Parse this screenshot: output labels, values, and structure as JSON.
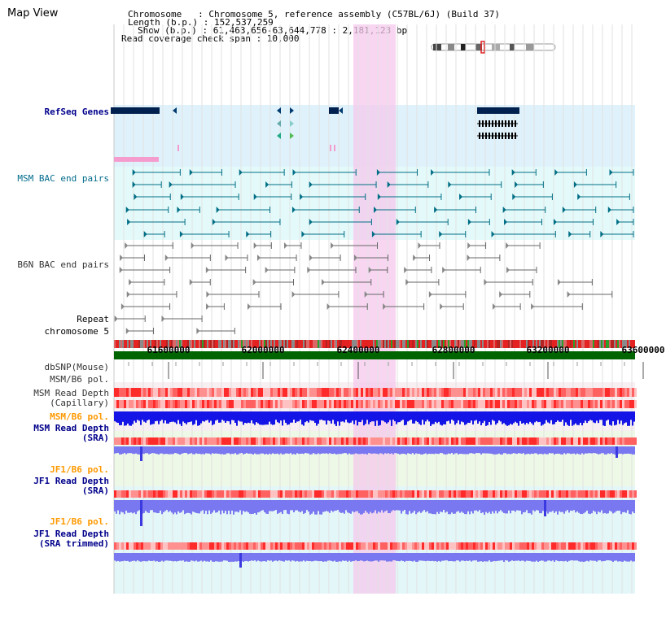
{
  "window": {
    "title": "Map View"
  },
  "header": {
    "lines": [
      "Chromosome   : Chromosome 5, reference assembly (C57BL/6J) (Build 37)",
      "Length (b.p.) : 152,537,259",
      "Show (b.p.) : 61,463,656-63,644,778 : 2,181,123 bp",
      "Read coverage check span : 10,000"
    ]
  },
  "tracks": {
    "refseq": "RefSeq Genes",
    "msm_bac": "MSM BAC end pairs",
    "b6n_bac": "B6N BAC end pairs",
    "repeat": "Repeat",
    "chromosome": "chromosome 5",
    "dbsnp": "dbSNP(Mouse)",
    "msm_b6_pol_1": "MSM/B6 pol.",
    "msm_read_depth_cap_1": "MSM Read Depth",
    "msm_read_depth_cap_2": "(Capillary)",
    "msm_b6_pol_2": "MSM/B6 pol.",
    "msm_read_depth_sra_1": "MSM Read Depth",
    "msm_read_depth_sra_2": "(SRA)",
    "jf1_b6_pol_1": "JF1/B6 pol.",
    "jf1_read_depth_sra_1": "JF1 Read Depth",
    "jf1_read_depth_sra_2": "(SRA)",
    "jf1_b6_pol_2": "JF1/B6 pol.",
    "jf1_read_depth_trim_1": "JF1 Read Depth",
    "jf1_read_depth_trim_2": "(SRA trimmed)"
  },
  "axis": {
    "ticks": [
      "61600000",
      "62000000",
      "62400000",
      "62800000",
      "63200000",
      "63600000"
    ]
  },
  "colors": {
    "label_blue": "#00008b",
    "label_teal": "#006b8b",
    "label_gray": "#333333",
    "label_orange": "#ff9900",
    "highlight": "#f5c8ec",
    "chromosome_bar": "#006400",
    "gene": "#00204f",
    "bac_msm": "#006e85",
    "depth_dark": "#1414e6",
    "depth_light": "#7a78f0"
  }
}
